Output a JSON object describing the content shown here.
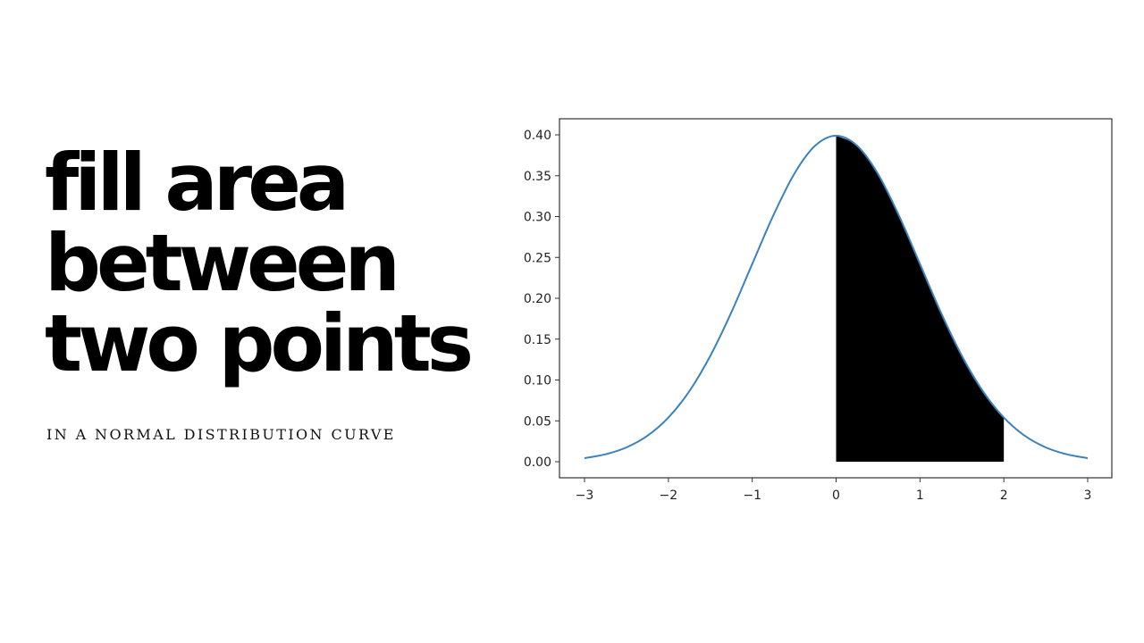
{
  "headline": {
    "lines": [
      "fill area",
      "between",
      "two points"
    ],
    "subtitle": "IN A NORMAL DISTRIBUTION CURVE"
  },
  "chart_data": {
    "type": "area",
    "x": [
      -3,
      -2.75,
      -2.5,
      -2.25,
      -2,
      -1.75,
      -1.5,
      -1.25,
      -1,
      -0.75,
      -0.5,
      -0.25,
      0,
      0.25,
      0.5,
      0.75,
      1,
      1.25,
      1.5,
      1.75,
      2,
      2.25,
      2.5,
      2.75,
      3
    ],
    "y": [
      0.0044,
      0.0091,
      0.0175,
      0.0317,
      0.054,
      0.0863,
      0.1295,
      0.1826,
      0.242,
      0.3011,
      0.3521,
      0.3867,
      0.3989,
      0.3867,
      0.3521,
      0.3011,
      0.242,
      0.1826,
      0.1295,
      0.0863,
      0.054,
      0.0317,
      0.0175,
      0.0091,
      0.0044
    ],
    "fill_between": [
      0,
      2
    ],
    "xlim": [
      -3.3,
      3.3
    ],
    "ylim": [
      -0.02,
      0.42
    ],
    "xticks": [
      -3,
      -2,
      -1,
      0,
      1,
      2,
      3
    ],
    "xtick_labels": [
      "−3",
      "−2",
      "−1",
      "0",
      "1",
      "2",
      "3"
    ],
    "yticks": [
      0,
      0.05,
      0.1,
      0.15,
      0.2,
      0.25,
      0.3,
      0.35,
      0.4
    ],
    "ytick_labels": [
      "0.00",
      "0.05",
      "0.10",
      "0.15",
      "0.20",
      "0.25",
      "0.30",
      "0.35",
      "0.40"
    ],
    "grid": false,
    "colors": {
      "line": "#3b82bf",
      "fill": "#000000"
    }
  }
}
